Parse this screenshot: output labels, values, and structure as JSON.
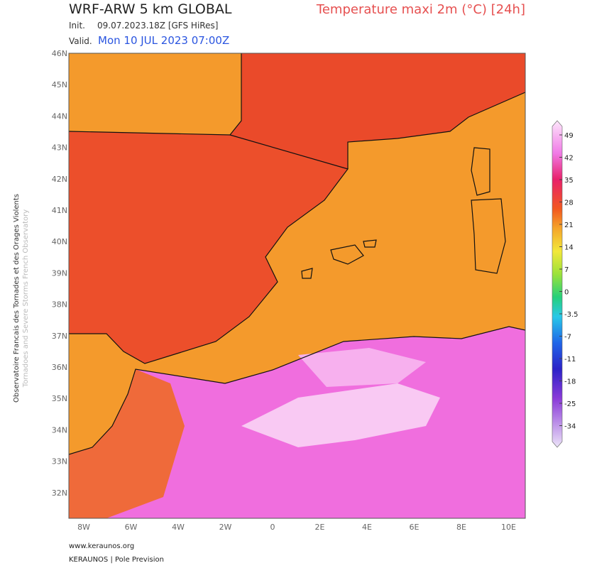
{
  "header": {
    "model": "WRF-ARW 5 km GLOBAL",
    "product": "Temperature maxi 2m (°C) [24h]",
    "init_label": "Init.",
    "init": "09.07.2023.18Z [GFS HiRes]",
    "valid_label": "Valid.",
    "valid": "Mon 10 JUL 2023 07:00Z"
  },
  "map": {
    "lat_labels": [
      "46N",
      "45N",
      "44N",
      "43N",
      "42N",
      "41N",
      "40N",
      "39N",
      "38N",
      "37N",
      "36N",
      "35N",
      "34N",
      "33N",
      "32N"
    ],
    "lon_labels": [
      "8W",
      "6W",
      "4W",
      "2W",
      "0",
      "2E",
      "4E",
      "6E",
      "8E",
      "10E"
    ]
  },
  "colorbar": {
    "ticks": [
      49,
      42,
      35,
      28,
      21,
      14,
      7,
      0,
      -3.5,
      -7,
      -11,
      -18,
      -25,
      -34
    ]
  },
  "side": {
    "line1": "Observatoire Francais des Tornades et des Orages Violents",
    "line2": "Tornadoes and Severe Storms French Observatory"
  },
  "footer": {
    "url": "www.keraunos.org",
    "company": "KERAUNOS | Pole Prevision"
  }
}
